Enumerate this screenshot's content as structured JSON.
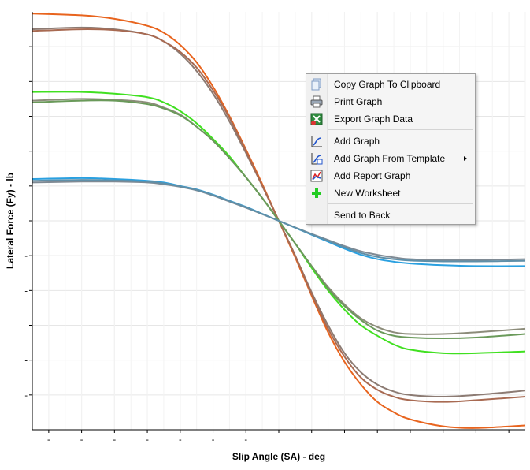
{
  "chart_data": {
    "type": "line",
    "xlabel": "Slip Angle (SA) - deg",
    "ylabel": "Lateral Force (Fy) - lb",
    "xlim": [
      -7.5,
      7.5
    ],
    "ylim": [
      -12,
      12
    ],
    "x_ticks": [
      -7,
      -6,
      -5,
      -4,
      -3,
      -2,
      -1,
      0,
      1,
      2,
      3,
      4,
      5,
      6,
      7
    ],
    "y_ticks": [
      -10,
      -8,
      -6,
      -4,
      -2,
      0,
      2,
      4,
      6,
      8,
      10
    ],
    "x_tick_labels": [
      "-",
      "-",
      "-",
      "-",
      "-",
      "-",
      "-",
      "",
      "",
      "",
      "",
      "",
      "",
      "",
      ""
    ],
    "y_tick_labels": [
      "-",
      "-",
      "-",
      "-",
      "-",
      "",
      "",
      "",
      "",
      "",
      ""
    ],
    "grid": true,
    "legend": "none",
    "series": [
      {
        "color": "#e8641e",
        "x": [
          -7.5,
          -6,
          -5,
          -4,
          -3.5,
          -3,
          -2.5,
          -2,
          -1.5,
          -1,
          -0.5,
          0,
          0.5,
          1,
          1.5,
          2,
          2.5,
          3,
          3.5,
          4,
          5,
          6,
          7.5
        ],
        "values": [
          11.9,
          11.8,
          11.6,
          11.2,
          10.8,
          10.1,
          9.1,
          7.7,
          6.0,
          4.1,
          2.1,
          0.0,
          -2.1,
          -4.3,
          -6.4,
          -8.1,
          -9.4,
          -10.4,
          -11.0,
          -11.4,
          -11.8,
          -11.9,
          -11.75
        ]
      },
      {
        "color": "#8c7b73",
        "x": [
          -7.5,
          -6,
          -5,
          -4,
          -3.5,
          -3,
          -2.5,
          -2,
          -1.5,
          -1,
          -0.5,
          0,
          0.5,
          1,
          1.5,
          2,
          2.5,
          3,
          3.5,
          4,
          5,
          6,
          7.5
        ],
        "values": [
          11.0,
          11.1,
          11.0,
          10.7,
          10.3,
          9.6,
          8.6,
          7.3,
          5.7,
          3.9,
          2.0,
          0.0,
          -2.0,
          -4.1,
          -6.0,
          -7.6,
          -8.7,
          -9.4,
          -9.8,
          -10.0,
          -10.1,
          -10.0,
          -9.75
        ]
      },
      {
        "color": "#a86a52",
        "x": [
          -7.5,
          -6,
          -5,
          -4,
          -3.5,
          -3,
          -2.5,
          -2,
          -1.5,
          -1,
          -0.5,
          0,
          0.5,
          1,
          1.5,
          2,
          2.5,
          3,
          3.5,
          4,
          5,
          6,
          7.5
        ],
        "values": [
          10.9,
          11.0,
          10.95,
          10.7,
          10.3,
          9.7,
          8.8,
          7.5,
          5.9,
          4.0,
          2.0,
          0.0,
          -2.0,
          -4.2,
          -6.2,
          -7.8,
          -9.0,
          -9.7,
          -10.1,
          -10.3,
          -10.4,
          -10.3,
          -10.1
        ]
      },
      {
        "color": "#40e020",
        "x": [
          -7.5,
          -6,
          -5,
          -4,
          -3.5,
          -3,
          -2.5,
          -2,
          -1.5,
          -1,
          -0.5,
          0,
          0.5,
          1,
          1.5,
          2,
          2.5,
          3,
          3.5,
          4,
          5,
          6,
          7.5
        ],
        "values": [
          7.4,
          7.4,
          7.3,
          7.1,
          6.8,
          6.3,
          5.6,
          4.7,
          3.7,
          2.5,
          1.3,
          0.0,
          -1.3,
          -2.7,
          -4.0,
          -5.1,
          -6.0,
          -6.6,
          -7.1,
          -7.4,
          -7.6,
          -7.6,
          -7.5
        ]
      },
      {
        "color": "#8c8c7a",
        "x": [
          -7.5,
          -6,
          -5,
          -4,
          -3.5,
          -3,
          -2.5,
          -2,
          -1.5,
          -1,
          -0.5,
          0,
          0.5,
          1,
          1.5,
          2,
          2.5,
          3,
          3.5,
          4,
          5,
          6,
          7.5
        ],
        "values": [
          6.9,
          7.0,
          6.95,
          6.8,
          6.5,
          6.1,
          5.4,
          4.6,
          3.6,
          2.5,
          1.3,
          0.0,
          -1.3,
          -2.6,
          -3.8,
          -4.8,
          -5.6,
          -6.1,
          -6.4,
          -6.5,
          -6.5,
          -6.4,
          -6.2
        ]
      },
      {
        "color": "#6a9a5a",
        "x": [
          -7.5,
          -6,
          -5,
          -4,
          -3.5,
          -3,
          -2.5,
          -2,
          -1.5,
          -1,
          -0.5,
          0,
          0.5,
          1,
          1.5,
          2,
          2.5,
          3,
          3.5,
          4,
          5,
          6,
          7.5
        ],
        "values": [
          6.8,
          6.9,
          6.9,
          6.7,
          6.45,
          6.05,
          5.4,
          4.6,
          3.6,
          2.5,
          1.3,
          0.0,
          -1.3,
          -2.6,
          -3.9,
          -4.9,
          -5.7,
          -6.3,
          -6.6,
          -6.7,
          -6.75,
          -6.7,
          -6.5
        ]
      },
      {
        "color": "#2aa0e0",
        "x": [
          -7.5,
          -6,
          -5,
          -4,
          -3.5,
          -3,
          -2.5,
          -2,
          -1.5,
          -1,
          -0.5,
          0,
          0.5,
          1,
          1.5,
          2,
          2.5,
          3,
          3.5,
          4,
          5,
          6,
          7.5
        ],
        "values": [
          2.4,
          2.45,
          2.4,
          2.3,
          2.2,
          2.0,
          1.8,
          1.5,
          1.15,
          0.8,
          0.4,
          0.0,
          -0.4,
          -0.8,
          -1.2,
          -1.6,
          -1.95,
          -2.2,
          -2.35,
          -2.45,
          -2.55,
          -2.6,
          -2.6
        ]
      },
      {
        "color": "#7f8a94",
        "x": [
          -7.5,
          -6,
          -5,
          -4,
          -3.5,
          -3,
          -2.5,
          -2,
          -1.5,
          -1,
          -0.5,
          0,
          0.5,
          1,
          1.5,
          2,
          2.5,
          3,
          3.5,
          4,
          5,
          6,
          7.5
        ],
        "values": [
          2.2,
          2.25,
          2.25,
          2.2,
          2.1,
          1.95,
          1.75,
          1.45,
          1.1,
          0.75,
          0.38,
          0.0,
          -0.38,
          -0.75,
          -1.1,
          -1.45,
          -1.75,
          -1.95,
          -2.1,
          -2.2,
          -2.25,
          -2.25,
          -2.2
        ]
      },
      {
        "color": "#5f8fa8",
        "x": [
          -7.5,
          -6,
          -5,
          -4,
          -3.5,
          -3,
          -2.5,
          -2,
          -1.5,
          -1,
          -0.5,
          0,
          0.5,
          1,
          1.5,
          2,
          2.5,
          3,
          3.5,
          4,
          5,
          6,
          7.5
        ],
        "values": [
          2.3,
          2.35,
          2.32,
          2.25,
          2.15,
          1.98,
          1.78,
          1.48,
          1.13,
          0.78,
          0.39,
          0.0,
          -0.39,
          -0.78,
          -1.15,
          -1.52,
          -1.85,
          -2.07,
          -2.2,
          -2.28,
          -2.33,
          -2.33,
          -2.3
        ]
      }
    ]
  },
  "context_menu": {
    "items": [
      {
        "id": "copy-graph",
        "label": "Copy Graph To Clipboard",
        "icon": "copy-icon"
      },
      {
        "id": "print-graph",
        "label": "Print Graph",
        "icon": "printer-icon"
      },
      {
        "id": "export-data",
        "label": "Export Graph Data",
        "icon": "excel-export-icon"
      },
      {
        "id": "add-graph",
        "label": "Add Graph",
        "icon": "graph-icon"
      },
      {
        "id": "add-graph-template",
        "label": "Add Graph From Template",
        "icon": "graph-template-icon"
      },
      {
        "id": "add-report-graph",
        "label": "Add Report Graph",
        "icon": "report-graph-icon"
      },
      {
        "id": "new-worksheet",
        "label": "New Worksheet",
        "icon": "plus-icon"
      },
      {
        "id": "send-to-back",
        "label": "Send to Back",
        "icon": ""
      }
    ]
  }
}
